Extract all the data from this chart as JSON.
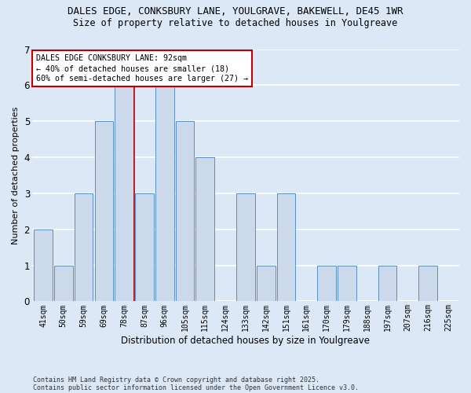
{
  "title_line1": "DALES EDGE, CONKSBURY LANE, YOULGRAVE, BAKEWELL, DE45 1WR",
  "title_line2": "Size of property relative to detached houses in Youlgreave",
  "xlabel": "Distribution of detached houses by size in Youlgreave",
  "ylabel": "Number of detached properties",
  "categories": [
    "41sqm",
    "50sqm",
    "59sqm",
    "69sqm",
    "78sqm",
    "87sqm",
    "96sqm",
    "105sqm",
    "115sqm",
    "124sqm",
    "133sqm",
    "142sqm",
    "151sqm",
    "161sqm",
    "170sqm",
    "179sqm",
    "188sqm",
    "197sqm",
    "207sqm",
    "216sqm",
    "225sqm"
  ],
  "values": [
    2,
    1,
    3,
    5,
    6,
    3,
    6,
    5,
    4,
    0,
    3,
    1,
    3,
    0,
    1,
    1,
    0,
    1,
    0,
    1,
    0
  ],
  "bar_color": "#ccd9ea",
  "bar_edge_color": "#5b8ec4",
  "vline_color": "#c00000",
  "vline_x": 5,
  "annotation_text": "DALES EDGE CONKSBURY LANE: 92sqm\n← 40% of detached houses are smaller (18)\n60% of semi-detached houses are larger (27) →",
  "annotation_box_color": "#ffffff",
  "annotation_box_edge": "#c00000",
  "ylim": [
    0,
    7
  ],
  "yticks": [
    0,
    1,
    2,
    3,
    4,
    5,
    6,
    7
  ],
  "background_color": "#dce8f5",
  "grid_color": "#ffffff",
  "footer_line1": "Contains HM Land Registry data © Crown copyright and database right 2025.",
  "footer_line2": "Contains public sector information licensed under the Open Government Licence v3.0."
}
